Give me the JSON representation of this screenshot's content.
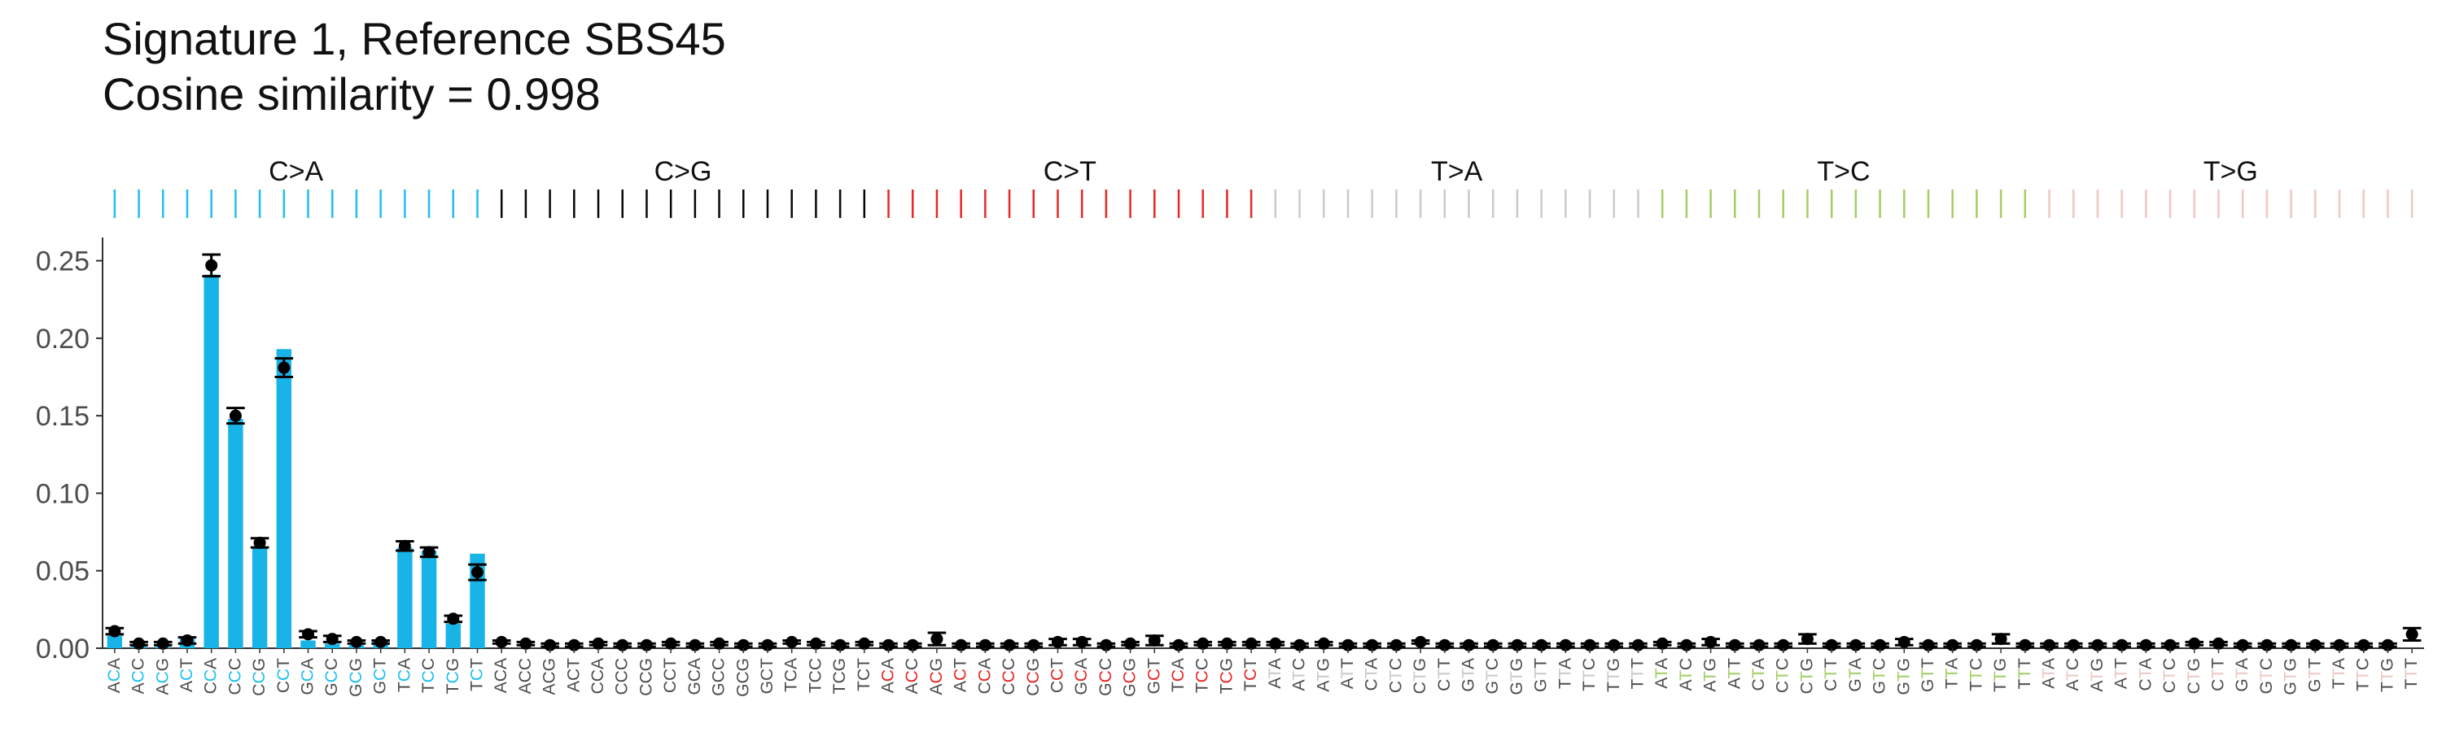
{
  "header": {
    "title_line1": "Signature 1, Reference SBS45",
    "title_line2": "Cosine similarity = 0.998"
  },
  "chart_data": {
    "type": "bar",
    "title": "Signature 1, Reference SBS45",
    "subtitle": "Cosine similarity = 0.998",
    "xlabel": "",
    "ylabel": "",
    "ylim": [
      0,
      0.265
    ],
    "yticks": [
      "0.00",
      "0.05",
      "0.10",
      "0.15",
      "0.20",
      "0.25"
    ],
    "grid": false,
    "legend": "none",
    "mutation_types": [
      {
        "name": "C>A",
        "color": "#1ebff0"
      },
      {
        "name": "C>G",
        "color": "#050708"
      },
      {
        "name": "C>T",
        "color": "#e62725"
      },
      {
        "name": "T>A",
        "color": "#cbcacb"
      },
      {
        "name": "T>C",
        "color": "#a1cf64"
      },
      {
        "name": "T>G",
        "color": "#edc8c5"
      }
    ],
    "categories": [
      "ACA",
      "ACC",
      "ACG",
      "ACT",
      "CCA",
      "CCC",
      "CCG",
      "CCT",
      "GCA",
      "GCC",
      "GCG",
      "GCT",
      "TCA",
      "TCC",
      "TCG",
      "TCT",
      "ACA",
      "ACC",
      "ACG",
      "ACT",
      "CCA",
      "CCC",
      "CCG",
      "CCT",
      "GCA",
      "GCC",
      "GCG",
      "GCT",
      "TCA",
      "TCC",
      "TCG",
      "TCT",
      "ACA",
      "ACC",
      "ACG",
      "ACT",
      "CCA",
      "CCC",
      "CCG",
      "CCT",
      "GCA",
      "GCC",
      "GCG",
      "GCT",
      "TCA",
      "TCC",
      "TCG",
      "TCT",
      "ATA",
      "ATC",
      "ATG",
      "ATT",
      "CTA",
      "CTC",
      "CTG",
      "CTT",
      "GTA",
      "GTC",
      "GTG",
      "GTT",
      "TTA",
      "TTC",
      "TTG",
      "TTT",
      "ATA",
      "ATC",
      "ATG",
      "ATT",
      "CTA",
      "CTC",
      "CTG",
      "CTT",
      "GTA",
      "GTC",
      "GTG",
      "GTT",
      "TTA",
      "TTC",
      "TTG",
      "TTT",
      "ATA",
      "ATC",
      "ATG",
      "ATT",
      "CTA",
      "CTC",
      "CTG",
      "CTT",
      "GTA",
      "GTC",
      "GTG",
      "GTT",
      "TTA",
      "TTC",
      "TTG",
      "TTT"
    ],
    "series": [
      {
        "values": [
          0.008,
          0.002,
          0.001,
          0.007,
          0.241,
          0.148,
          0.065,
          0.193,
          0.005,
          0.003,
          0.002,
          0.005,
          0.065,
          0.063,
          0.016,
          0.061,
          0,
          0,
          0,
          0,
          0,
          0,
          0,
          0,
          0,
          0,
          0,
          0,
          0,
          0,
          0,
          0,
          0,
          0,
          0,
          0,
          0,
          0,
          0,
          0,
          0,
          0,
          0,
          0,
          0,
          0,
          0,
          0,
          0,
          0,
          0,
          0,
          0,
          0,
          0,
          0,
          0,
          0,
          0,
          0,
          0,
          0,
          0,
          0,
          0,
          0,
          0,
          0,
          0,
          0,
          0,
          0,
          0,
          0,
          0,
          0,
          0,
          0,
          0,
          0,
          0,
          0,
          0,
          0,
          0,
          0,
          0,
          0,
          0,
          0,
          0,
          0,
          0,
          0,
          0,
          0
        ]
      },
      {
        "values": [
          0.011,
          0.003,
          0.003,
          0.005,
          0.247,
          0.15,
          0.068,
          0.181,
          0.009,
          0.006,
          0.004,
          0.004,
          0.066,
          0.062,
          0.019,
          0.049,
          0.004,
          0.003,
          0.002,
          0.002,
          0.003,
          0.002,
          0.002,
          0.003,
          0.002,
          0.003,
          0.002,
          0.002,
          0.004,
          0.003,
          0.002,
          0.003,
          0.002,
          0.002,
          0.006,
          0.002,
          0.002,
          0.002,
          0.002,
          0.004,
          0.004,
          0.002,
          0.003,
          0.005,
          0.002,
          0.003,
          0.003,
          0.003,
          0.003,
          0.002,
          0.003,
          0.002,
          0.002,
          0.002,
          0.004,
          0.002,
          0.002,
          0.002,
          0.002,
          0.002,
          0.002,
          0.002,
          0.002,
          0.002,
          0.003,
          0.002,
          0.004,
          0.002,
          0.002,
          0.002,
          0.006,
          0.002,
          0.002,
          0.002,
          0.004,
          0.002,
          0.002,
          0.002,
          0.006,
          0.002,
          0.002,
          0.002,
          0.002,
          0.002,
          0.002,
          0.002,
          0.003,
          0.003,
          0.002,
          0.002,
          0.002,
          0.002,
          0.002,
          0.002,
          0.002,
          0.009
        ],
        "error_min": [
          0.009,
          0.002,
          0.002,
          0.003,
          0.24,
          0.145,
          0.065,
          0.175,
          0.007,
          0.004,
          0.003,
          0.003,
          0.063,
          0.059,
          0.017,
          0.044,
          0.003,
          0.002,
          0.001,
          0.001,
          0.002,
          0.001,
          0.001,
          0.002,
          0.001,
          0.002,
          0.001,
          0.001,
          0.003,
          0.002,
          0.001,
          0.002,
          0.001,
          0.001,
          0.002,
          0.001,
          0.001,
          0.001,
          0.001,
          0.002,
          0.002,
          0.001,
          0.002,
          0.002,
          0.001,
          0.002,
          0.002,
          0.002,
          0.002,
          0.001,
          0.002,
          0.001,
          0.001,
          0.001,
          0.003,
          0.001,
          0.001,
          0.001,
          0.001,
          0.001,
          0.001,
          0.001,
          0.001,
          0.001,
          0.002,
          0.001,
          0.002,
          0.001,
          0.001,
          0.001,
          0.003,
          0.001,
          0.001,
          0.001,
          0.002,
          0.001,
          0.001,
          0.001,
          0.003,
          0.001,
          0.001,
          0.001,
          0.001,
          0.001,
          0.001,
          0.001,
          0.002,
          0.002,
          0.001,
          0.001,
          0.001,
          0.001,
          0.001,
          0.001,
          0.001,
          0.005
        ],
        "error_max": [
          0.013,
          0.004,
          0.004,
          0.007,
          0.254,
          0.155,
          0.071,
          0.187,
          0.011,
          0.008,
          0.005,
          0.005,
          0.069,
          0.065,
          0.021,
          0.054,
          0.005,
          0.004,
          0.003,
          0.003,
          0.004,
          0.003,
          0.003,
          0.004,
          0.003,
          0.004,
          0.003,
          0.003,
          0.005,
          0.004,
          0.003,
          0.004,
          0.003,
          0.003,
          0.01,
          0.003,
          0.003,
          0.003,
          0.003,
          0.006,
          0.006,
          0.003,
          0.004,
          0.008,
          0.003,
          0.004,
          0.004,
          0.004,
          0.004,
          0.003,
          0.004,
          0.003,
          0.003,
          0.003,
          0.005,
          0.003,
          0.003,
          0.003,
          0.003,
          0.003,
          0.003,
          0.003,
          0.003,
          0.003,
          0.004,
          0.003,
          0.006,
          0.003,
          0.003,
          0.003,
          0.009,
          0.003,
          0.003,
          0.003,
          0.006,
          0.003,
          0.003,
          0.003,
          0.009,
          0.003,
          0.003,
          0.003,
          0.003,
          0.003,
          0.003,
          0.003,
          0.004,
          0.004,
          0.003,
          0.003,
          0.003,
          0.003,
          0.003,
          0.003,
          0.003,
          0.013
        ]
      }
    ]
  }
}
